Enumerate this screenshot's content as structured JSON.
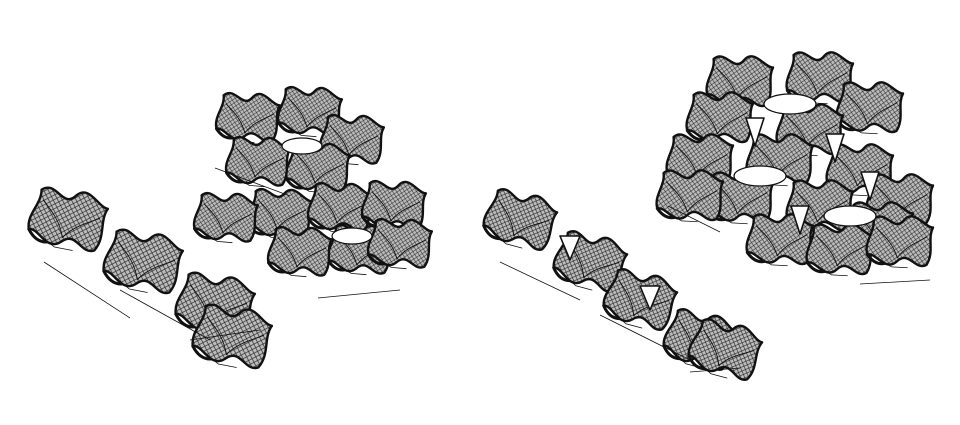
{
  "figure": {
    "colors": {
      "background": "#ffffff",
      "stroke": "#111111",
      "mesh": "#2a2a2a",
      "shade": "#9a9a9a"
    },
    "panels": [
      {
        "id": "left",
        "clusters": [
          {
            "id": "strip-curved",
            "kind": "linear-strip",
            "cells": 4,
            "opening_type": "curved"
          },
          {
            "id": "ring-curved",
            "kind": "ring-cluster",
            "cells": 12,
            "opening_type": "curved"
          }
        ]
      },
      {
        "id": "right",
        "clusters": [
          {
            "id": "strip-triangular",
            "kind": "linear-strip",
            "cells": 5,
            "opening_type": "triangular"
          },
          {
            "id": "ring-triangular",
            "kind": "ring-cluster",
            "cells": 16,
            "opening_type": "triangular"
          }
        ]
      }
    ]
  }
}
